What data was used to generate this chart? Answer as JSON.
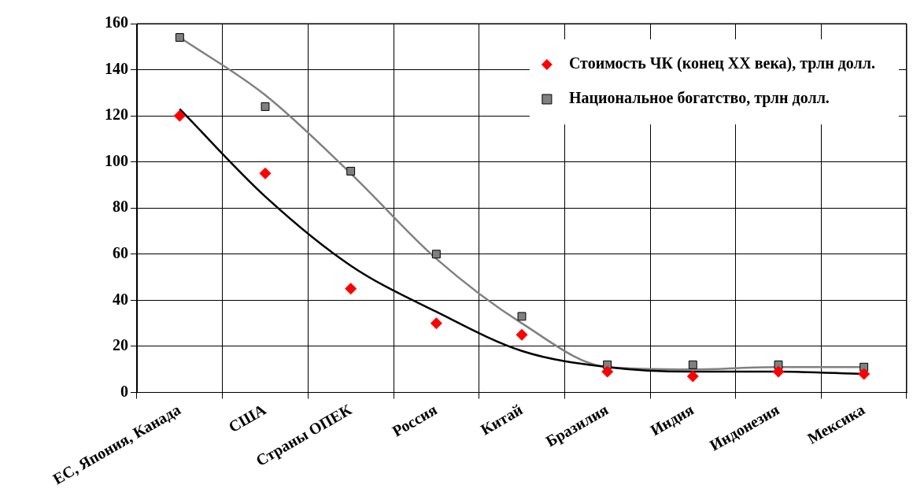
{
  "chart_data": {
    "type": "scatter",
    "categories": [
      "ЕС, Япония, Канада",
      "США",
      "Страны ОПЕК",
      "Россия",
      "Китай",
      "Бразилия",
      "Индия",
      "Индонезия",
      "Мексика"
    ],
    "series": [
      {
        "name": "Стоимость ЧК (конец XX века), трлн долл.",
        "color": "#ff0000",
        "marker": "diamond",
        "values": [
          120,
          95,
          45,
          30,
          25,
          9,
          7,
          9,
          8
        ]
      },
      {
        "name": "Национальное богатство, трлн долл.",
        "color": "#808080",
        "marker": "square",
        "values": [
          154,
          124,
          96,
          60,
          33,
          12,
          12,
          12,
          11
        ]
      },
      {
        "type": "line",
        "color": "#000000",
        "marker": "none",
        "values": [
          123,
          85,
          55,
          35,
          18,
          11,
          9,
          9,
          8
        ]
      },
      {
        "type": "line",
        "color": "#808080",
        "marker": "none",
        "values": [
          154,
          129,
          95,
          58,
          30,
          11,
          10,
          11,
          11
        ]
      }
    ],
    "ylim": [
      0,
      160
    ],
    "yticks": [
      0,
      20,
      40,
      60,
      80,
      100,
      120,
      140,
      160
    ],
    "grid": true,
    "legend": "top right"
  }
}
